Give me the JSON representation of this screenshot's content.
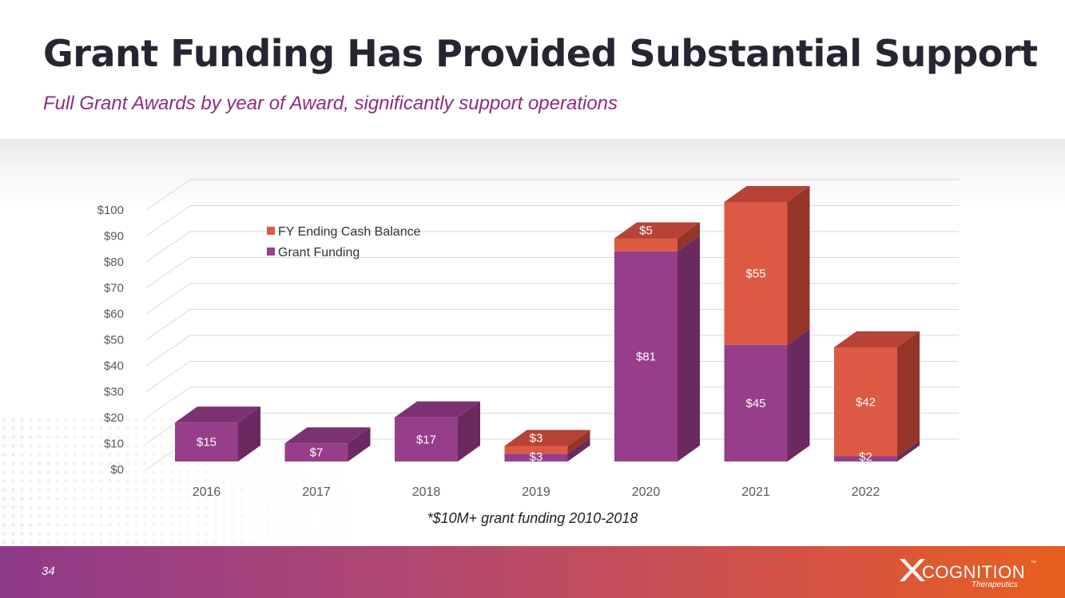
{
  "slide": {
    "title": "Grant Funding Has Provided Substantial Support",
    "subtitle": "Full Grant Awards by year of Award, significantly support operations",
    "footnote": "*$10M+ grant funding 2010-2018",
    "page_number": "34"
  },
  "logo": {
    "name": "COGNITION",
    "tagline": "Therapeutics",
    "trademark": "™"
  },
  "colors": {
    "grant_front": "#963e8a",
    "grant_side": "#6a2a60",
    "grant_top": "#7c3272",
    "cash_front": "#dc5a44",
    "cash_side": "#95352a",
    "cash_top": "#b64335",
    "gridline": "#d9d9d9",
    "axis_text": "#595959",
    "label_text": "#ffffff"
  },
  "chart_data": {
    "type": "bar",
    "stacked": true,
    "three_d": true,
    "categories": [
      "2016",
      "2017",
      "2018",
      "2019",
      "2020",
      "2021",
      "2022"
    ],
    "series": [
      {
        "name": "Grant Funding",
        "values": [
          15,
          7,
          17,
          3,
          81,
          45,
          2
        ],
        "labels": [
          "$15",
          "$7",
          "$17",
          "$3",
          "$81",
          "$45",
          "$2"
        ]
      },
      {
        "name": "FY Ending Cash Balance",
        "values": [
          null,
          null,
          null,
          3,
          5,
          55,
          42
        ],
        "labels": [
          "",
          "",
          "",
          "$3",
          "$5",
          "$55",
          "$42"
        ]
      }
    ],
    "ylim": [
      0,
      100
    ],
    "yticks": [
      0,
      10,
      20,
      30,
      40,
      50,
      60,
      70,
      80,
      90,
      100
    ],
    "ytick_labels": [
      "$0",
      "$10",
      "$20",
      "$30",
      "$40",
      "$50",
      "$60",
      "$70",
      "$80",
      "$90",
      "$100"
    ],
    "legend": {
      "placement": "top-left",
      "entries": [
        "FY Ending Cash Balance",
        "Grant Funding"
      ]
    },
    "grid": true
  }
}
